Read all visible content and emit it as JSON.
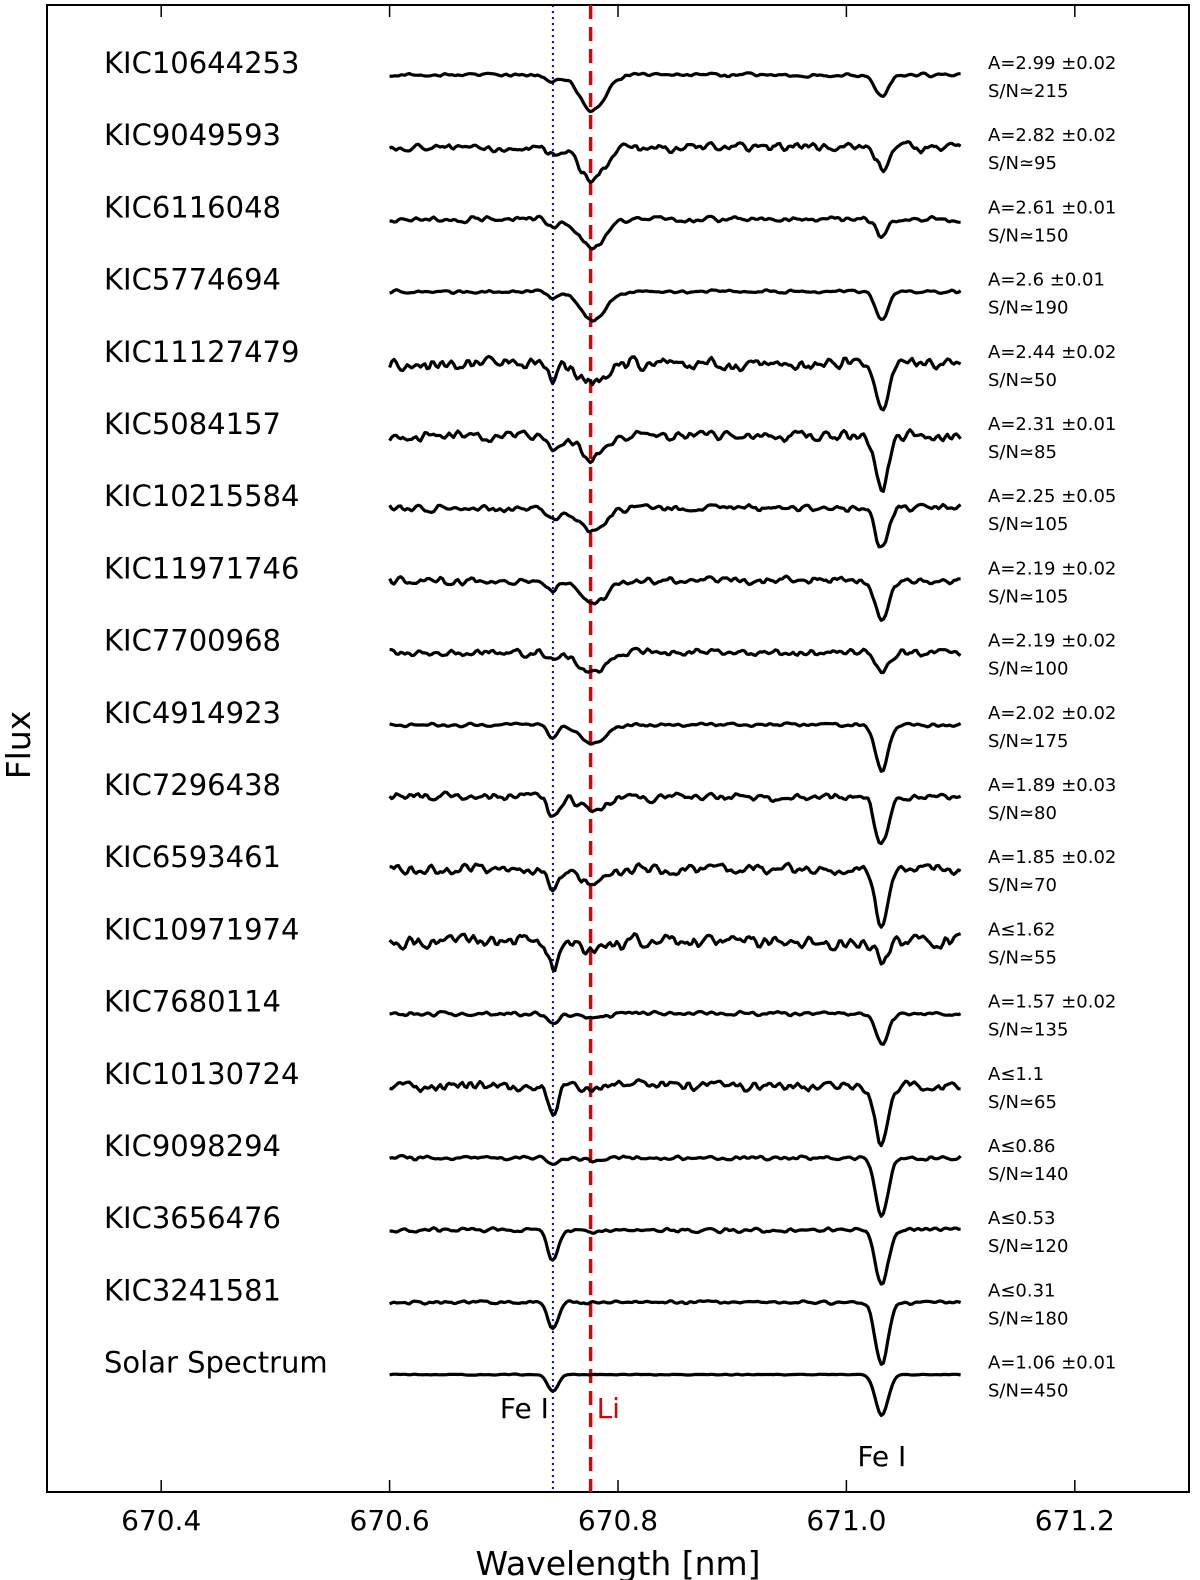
{
  "chart_data": {
    "type": "line",
    "xlabel": "Wavelength [nm]",
    "ylabel": "Flux",
    "xlim": [
      670.3,
      671.3
    ],
    "xticks": [
      "670.4",
      "670.6",
      "670.8",
      "671.0",
      "671.2"
    ],
    "x_range_of_spectra": [
      670.6,
      671.1
    ],
    "grid": false,
    "reference_lines": [
      {
        "label": "Fe I",
        "x": 670.743,
        "color": "#0000ff",
        "style": "dotted"
      },
      {
        "label": "Li",
        "x": 670.776,
        "color": "#e00000",
        "style": "dashed"
      },
      {
        "label": "Fe I",
        "x": 671.031,
        "color": "#000000",
        "style": "none"
      }
    ],
    "colors": {
      "spectra": "#000000",
      "solar": "#e00000",
      "fe_line": "#0000ff",
      "li_line": "#e00000"
    },
    "series": [
      {
        "name": "KIC10644253",
        "abundance": "A=2.99 ±0.02",
        "snr": "S/N≃215",
        "li_depth": 0.75,
        "fe1_depth": 0.15,
        "fe2_depth": 0.45,
        "noise": 0.12
      },
      {
        "name": "KIC9049593",
        "abundance": "A=2.82 ±0.02",
        "snr": "S/N≃95",
        "li_depth": 0.7,
        "fe1_depth": 0.15,
        "fe2_depth": 0.45,
        "noise": 0.3
      },
      {
        "name": "KIC6116048",
        "abundance": "A=2.61 ±0.01",
        "snr": "S/N≃150",
        "li_depth": 0.6,
        "fe1_depth": 0.15,
        "fe2_depth": 0.35,
        "noise": 0.2
      },
      {
        "name": "KIC5774694",
        "abundance": "A=2.6 ±0.01",
        "snr": "S/N≃190",
        "li_depth": 0.6,
        "fe1_depth": 0.15,
        "fe2_depth": 0.6,
        "noise": 0.12
      },
      {
        "name": "KIC11127479",
        "abundance": "A=2.44 ±0.02",
        "snr": "S/N≃50",
        "li_depth": 0.45,
        "fe1_depth": 0.35,
        "fe2_depth": 0.95,
        "noise": 0.45
      },
      {
        "name": "KIC5084157",
        "abundance": "A=2.31 ±0.01",
        "snr": "S/N≃85",
        "li_depth": 0.45,
        "fe1_depth": 0.35,
        "fe2_depth": 1.1,
        "noise": 0.35
      },
      {
        "name": "KIC10215584",
        "abundance": "A=2.25 ±0.05",
        "snr": "S/N≃105",
        "li_depth": 0.5,
        "fe1_depth": 0.2,
        "fe2_depth": 0.85,
        "noise": 0.25
      },
      {
        "name": "KIC11971746",
        "abundance": "A=2.19 ±0.02",
        "snr": "S/N≃105",
        "li_depth": 0.5,
        "fe1_depth": 0.2,
        "fe2_depth": 0.85,
        "noise": 0.25
      },
      {
        "name": "KIC7700968",
        "abundance": "A=2.19 ±0.02",
        "snr": "S/N≃100",
        "li_depth": 0.45,
        "fe1_depth": 0.15,
        "fe2_depth": 0.4,
        "noise": 0.25
      },
      {
        "name": "KIC4914923",
        "abundance": "A=2.02 ±0.02",
        "snr": "S/N≃175",
        "li_depth": 0.4,
        "fe1_depth": 0.25,
        "fe2_depth": 0.95,
        "noise": 0.12
      },
      {
        "name": "KIC7296438",
        "abundance": "A=1.89 ±0.03",
        "snr": "S/N≃80",
        "li_depth": 0.3,
        "fe1_depth": 0.4,
        "fe2_depth": 1.0,
        "noise": 0.3
      },
      {
        "name": "KIC6593461",
        "abundance": "A=1.85 ±0.02",
        "snr": "S/N≃70",
        "li_depth": 0.3,
        "fe1_depth": 0.55,
        "fe2_depth": 1.2,
        "noise": 0.35
      },
      {
        "name": "KIC10971974",
        "abundance": "A≤1.62",
        "snr": "S/N≃55",
        "li_depth": 0.15,
        "fe1_depth": 0.55,
        "fe2_depth": 0.4,
        "noise": 0.45
      },
      {
        "name": "KIC7680114",
        "abundance": "A=1.57 ±0.02",
        "snr": "S/N≃135",
        "li_depth": 0.1,
        "fe1_depth": 0.2,
        "fe2_depth": 0.65,
        "noise": 0.15
      },
      {
        "name": "KIC10130724",
        "abundance": "A≤1.1",
        "snr": "S/N≃65",
        "li_depth": 0.05,
        "fe1_depth": 0.55,
        "fe2_depth": 1.25,
        "noise": 0.35
      },
      {
        "name": "KIC9098294",
        "abundance": "A≤0.86",
        "snr": "S/N≃140",
        "li_depth": 0.05,
        "fe1_depth": 0.15,
        "fe2_depth": 1.2,
        "noise": 0.15
      },
      {
        "name": "KIC3656476",
        "abundance": "A≤0.53",
        "snr": "S/N≃120",
        "li_depth": 0.02,
        "fe1_depth": 0.65,
        "fe2_depth": 1.15,
        "noise": 0.15
      },
      {
        "name": "KIC3241581",
        "abundance": "A≤0.31",
        "snr": "S/N≃180",
        "li_depth": 0.02,
        "fe1_depth": 0.55,
        "fe2_depth": 1.3,
        "noise": 0.12
      },
      {
        "name": "Solar Spectrum",
        "abundance": "A=1.06 ±0.01",
        "snr": "S/N=450",
        "li_depth": 0.0,
        "fe1_depth": 0.35,
        "fe2_depth": 0.85,
        "noise": 0.03,
        "color": "#e00000"
      }
    ]
  }
}
